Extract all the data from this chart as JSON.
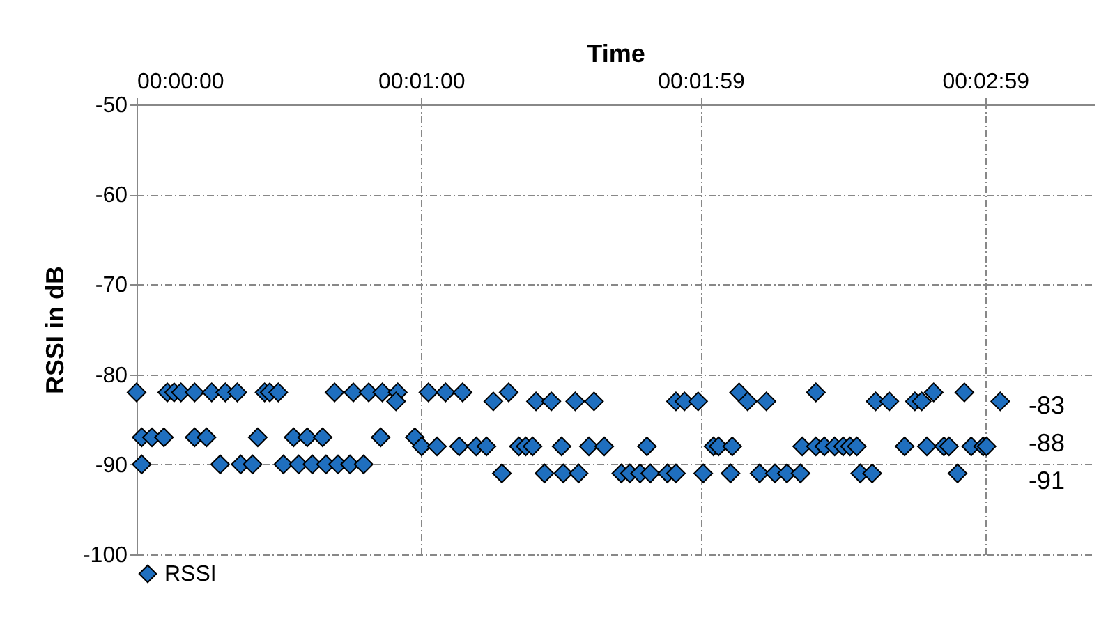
{
  "chart_data": {
    "type": "scatter",
    "xlabel": "Time",
    "ylabel": "RSSI in dB",
    "xlim": [
      0,
      0.0561
    ],
    "xticks": [
      {
        "value": 0,
        "label": "00:00:00"
      },
      {
        "value": 0.016667,
        "label": "00:01:00"
      },
      {
        "value": 0.033056,
        "label": "00:01:59"
      },
      {
        "value": 0.049722,
        "label": "00:02:59"
      }
    ],
    "ylim": [
      -100,
      -50
    ],
    "yticks": [
      -100,
      -90,
      -80,
      -70,
      -60,
      -50
    ],
    "grid": true,
    "legend": "bottom",
    "marker": "diamond",
    "series": [
      {
        "name": "RSSI",
        "color": "#1f6fbf",
        "x": [
          0,
          0.0018,
          0.0022,
          0.0026,
          0.0034,
          0.0044,
          0.0052,
          0.0059,
          0.0075,
          0.0078,
          0.0083,
          0.0116,
          0.0127,
          0.0136,
          0.0144,
          0.0153,
          0.0171,
          0.0181,
          0.0191,
          0.0218,
          0.0353,
          0.0398,
          0.0467,
          0.0485,
          0.0152,
          0.0209,
          0.0234,
          0.0243,
          0.0257,
          0.0268,
          0.0316,
          0.0321,
          0.0329,
          0.0358,
          0.0369,
          0.0433,
          0.0441,
          0.0456,
          0.046,
          0.0506,
          0.0003,
          0.0009,
          0.0016,
          0.0034,
          0.0041,
          0.0071,
          0.0092,
          0.01,
          0.0109,
          0.0143,
          0.0163,
          0.0167,
          0.0176,
          0.0189,
          0.0199,
          0.0205,
          0.0224,
          0.0228,
          0.0232,
          0.0249,
          0.0265,
          0.0274,
          0.0299,
          0.0338,
          0.0341,
          0.0349,
          0.039,
          0.0398,
          0.0403,
          0.0409,
          0.0414,
          0.0418,
          0.0422,
          0.045,
          0.0463,
          0.0473,
          0.0476,
          0.0489,
          0.0496,
          0.0498,
          0.0003,
          0.0049,
          0.0061,
          0.0068,
          0.0086,
          0.0095,
          0.0103,
          0.0111,
          0.0118,
          0.0125,
          0.0133,
          0.0214,
          0.0239,
          0.025,
          0.0259,
          0.0284,
          0.0289,
          0.0295,
          0.0301,
          0.0311,
          0.0316,
          0.0332,
          0.0348,
          0.0365,
          0.0374,
          0.0381,
          0.0389,
          0.0424,
          0.0431,
          0.0481
        ],
        "values": [
          -82,
          -82,
          -82,
          -82,
          -82,
          -82,
          -82,
          -82,
          -82,
          -82,
          -82,
          -82,
          -82,
          -82,
          -82,
          -82,
          -82,
          -82,
          -82,
          -82,
          -82,
          -82,
          -82,
          -82,
          -83,
          -83,
          -83,
          -83,
          -83,
          -83,
          -83,
          -83,
          -83,
          -83,
          -83,
          -83,
          -83,
          -83,
          -83,
          -83,
          -87,
          -87,
          -87,
          -87,
          -87,
          -87,
          -87,
          -87,
          -87,
          -87,
          -87,
          -88,
          -88,
          -88,
          -88,
          -88,
          -88,
          -88,
          -88,
          -88,
          -88,
          -88,
          -88,
          -88,
          -88,
          -88,
          -88,
          -88,
          -88,
          -88,
          -88,
          -88,
          -88,
          -88,
          -88,
          -88,
          -88,
          -88,
          -88,
          -88,
          -90,
          -90,
          -90,
          -90,
          -90,
          -90,
          -90,
          -90,
          -90,
          -90,
          -90,
          -91,
          -91,
          -91,
          -91,
          -91,
          -91,
          -91,
          -91,
          -91,
          -91,
          -91,
          -91,
          -91,
          -91,
          -91,
          -91,
          -91,
          -91,
          -91
        ]
      }
    ],
    "annotations": [
      "-83",
      "-88",
      "-91"
    ]
  }
}
